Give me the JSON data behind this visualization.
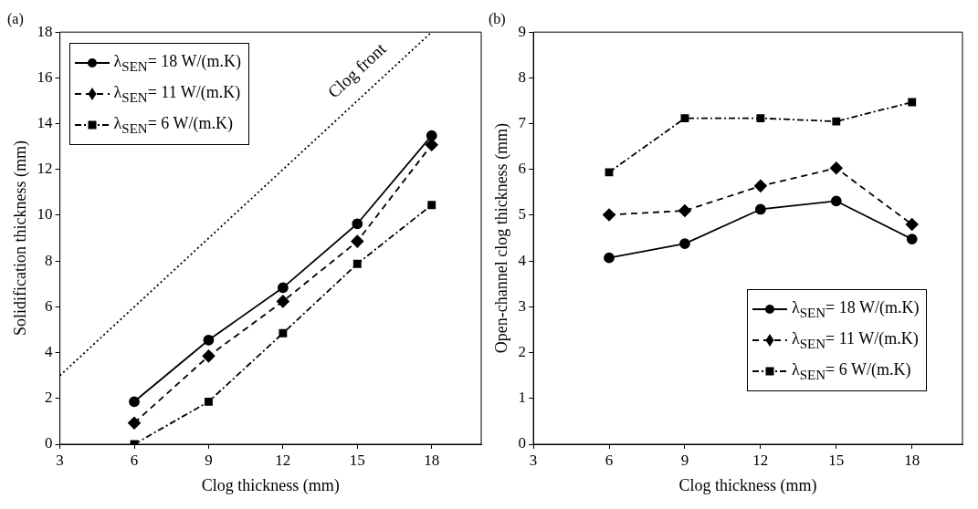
{
  "chart_data": [
    {
      "type": "line",
      "title": "(a)",
      "xlabel": "Clog thickness (mm)",
      "ylabel": "Solidification thickness (mm)",
      "x": [
        6,
        9,
        12,
        15,
        18
      ],
      "xlim": [
        3,
        20
      ],
      "xticks": [
        3,
        6,
        9,
        12,
        15,
        18
      ],
      "ylim": [
        0,
        18
      ],
      "yticks": [
        0,
        2,
        4,
        6,
        8,
        10,
        12,
        14,
        16,
        18
      ],
      "grid": false,
      "legend": "top left",
      "series": [
        {
          "name": "λ$_{SEN}$= 18 W/(m.K)",
          "color": "#000000",
          "marker": "circle",
          "line_style": "solid",
          "values": [
            1.86,
            4.55,
            6.84,
            9.63,
            13.48
          ]
        },
        {
          "name": "λ$_{SEN}$= 11 W/(m.K)",
          "color": "#000000",
          "marker": "diamond",
          "line_style": "dashed",
          "values": [
            0.93,
            3.85,
            6.24,
            8.86,
            13.08
          ]
        },
        {
          "name": "λ$_{SEN}$= 6 W/(m.K)",
          "color": "#000000",
          "marker": "square",
          "line_style": "dashdot",
          "values": [
            0,
            1.86,
            4.85,
            7.88,
            10.45
          ]
        },
        {
          "name": "Clog front",
          "type": "line",
          "color": "#000000",
          "marker": "none",
          "line_style": "dotted",
          "x": [
            3,
            18
          ],
          "values": [
            3,
            18
          ]
        }
      ]
    },
    {
      "type": "line",
      "title": "(b)",
      "xlabel": "Clog thickness (mm)",
      "ylabel": "Open-channel clog thickness (mm)",
      "x": [
        6,
        9,
        12,
        15,
        18
      ],
      "xlim": [
        3,
        20
      ],
      "xticks": [
        3,
        6,
        9,
        12,
        15,
        18
      ],
      "ylim": [
        0,
        9
      ],
      "yticks": [
        0,
        1,
        2,
        3,
        4,
        5,
        6,
        7,
        8,
        9
      ],
      "grid": false,
      "legend": "bottom right",
      "series": [
        {
          "name": "λ$_{SEN}$= 18 W/(m.K)",
          "color": "#000000",
          "marker": "circle",
          "line_style": "solid",
          "values": [
            4.07,
            4.38,
            5.13,
            5.31,
            4.48
          ]
        },
        {
          "name": "λ$_{SEN}$= 11 W/(m.K)",
          "color": "#000000",
          "marker": "diamond",
          "line_style": "dashed",
          "values": [
            5.01,
            5.1,
            5.64,
            6.03,
            4.8
          ]
        },
        {
          "name": "λ$_{SEN}$= 6 W/(m.K)",
          "color": "#000000",
          "marker": "square",
          "line_style": "dashdot",
          "values": [
            5.94,
            7.12,
            7.12,
            7.05,
            7.47
          ]
        }
      ]
    }
  ]
}
